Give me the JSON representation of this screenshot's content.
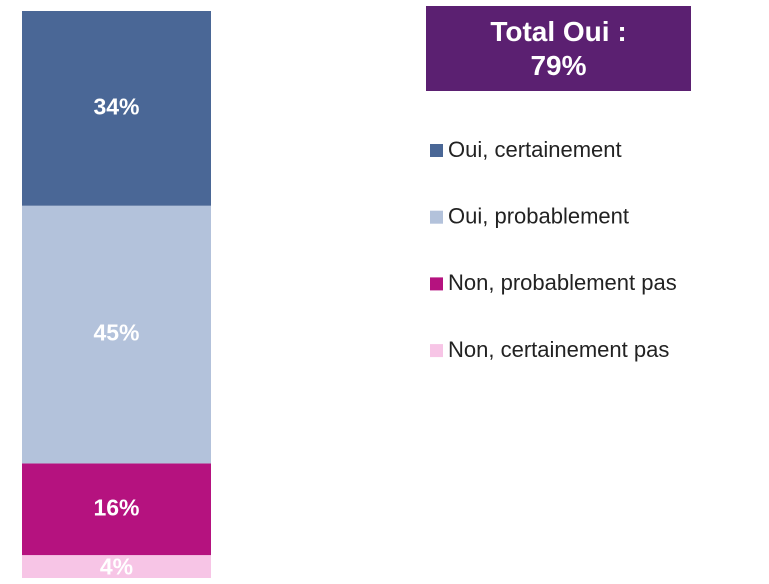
{
  "chart_data": {
    "type": "stacked_bar",
    "annotation": "Total Oui : 79%",
    "annotation_color": "#5b2071",
    "series": [
      {
        "name": "Oui, certainement",
        "color": "#4a6796",
        "values": [
          34
        ],
        "value_labels": [
          "34%"
        ]
      },
      {
        "name": "Oui, probablement",
        "color": "#b3c2db",
        "values": [
          45
        ],
        "value_labels": [
          "45%"
        ]
      },
      {
        "name": "Non, probablement pas",
        "color": "#b5127f",
        "values": [
          16
        ],
        "value_labels": [
          "16%"
        ]
      },
      {
        "name": "Non, certainement pas",
        "color": "#f7c5e6",
        "values": [
          4
        ],
        "value_labels": [
          "4%"
        ]
      }
    ],
    "legend": "right"
  }
}
